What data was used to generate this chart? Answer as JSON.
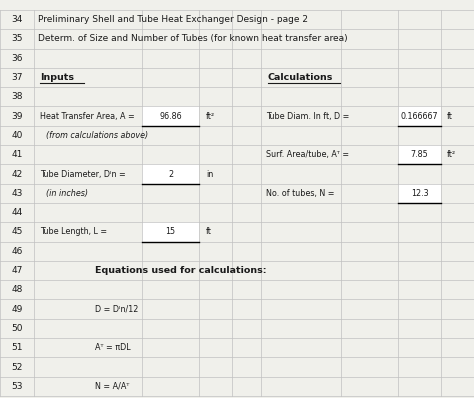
{
  "bg_color": "#f0f0eb",
  "grid_color": "#c0c0c0",
  "text_color": "#1a1a1a",
  "row_nums": [
    34,
    35,
    36,
    37,
    38,
    39,
    40,
    41,
    42,
    43,
    44,
    45,
    46,
    47,
    48,
    49,
    50,
    51,
    52,
    53
  ],
  "title_row34": "Preliminary Shell and Tube Heat Exchanger Design - page 2",
  "title_row35": "Determ. of Size and Number of Tubes (for known heat transfer area)",
  "label_inputs": "Inputs",
  "label_calculations": "Calculations",
  "row39_left_label": "Heat Transfer Area, A =",
  "row39_left_value": "96.86",
  "row39_left_unit": "ft²",
  "row39_right_label": "Tube Diam. In ft, D =",
  "row39_right_value": "0.166667",
  "row39_right_unit": "ft",
  "row40_note": "(from calculations above)",
  "row41_right_label": "Surf. Area/tube, Aᵀ =",
  "row41_right_value": "7.85",
  "row41_right_unit": "ft²",
  "row42_left_label": "Tube Diameter, Dᴵn =",
  "row42_left_value": "2",
  "row42_left_unit": "in",
  "row43_note": "(in inches)",
  "row43_right_label": "No. of tubes, N =",
  "row43_right_value": "12.3",
  "row45_left_label": "Tube Length, L =",
  "row45_left_value": "15",
  "row45_left_unit": "ft",
  "row47_eq_header": "Equations used for calculations:",
  "row49_eq": "D = Dᴵn/12",
  "row51_eq": "Aᵀ = πDL",
  "row53_eq": "N = A/Aᵀ"
}
